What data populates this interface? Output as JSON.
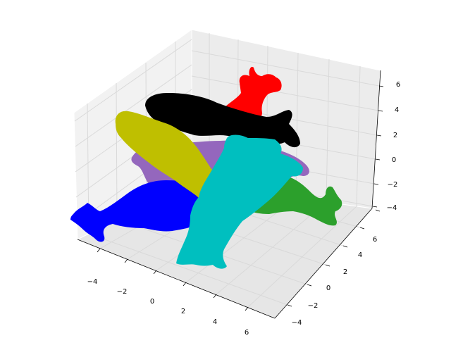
{
  "chart_data": {
    "type": "scatter",
    "projection": "3d",
    "title": "",
    "xlabel": "",
    "ylabel": "",
    "zlabel": "",
    "grid": true,
    "pane_color": "#f2f2f2",
    "grid_color": "#d9d9d9",
    "x_ticks": [
      "−4",
      "−2",
      "0",
      "2",
      "4",
      "6"
    ],
    "y_ticks": [
      "−4",
      "−2",
      "0",
      "2",
      "4",
      "6"
    ],
    "z_ticks": [
      "−4",
      "−2",
      "0",
      "2",
      "4",
      "6"
    ],
    "series": [
      {
        "color": "#ff0000",
        "shape": "cow"
      },
      {
        "color": "#000000",
        "shape": "cow"
      },
      {
        "color": "#2ca02c",
        "shape": "cow"
      },
      {
        "color": "#9467bd",
        "shape": "cow"
      },
      {
        "color": "#0000ff",
        "shape": "cow"
      },
      {
        "color": "#bfbf00",
        "shape": "cow"
      },
      {
        "color": "#00bfbf",
        "shape": "cow"
      }
    ]
  }
}
